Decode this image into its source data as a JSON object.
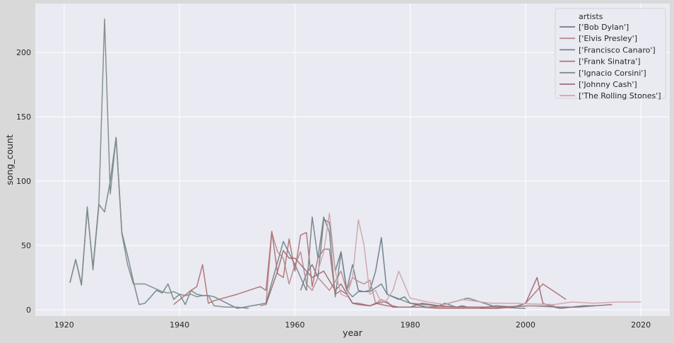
{
  "chart_data": {
    "type": "line",
    "title": "",
    "xlabel": "year",
    "ylabel": "song_count",
    "xlim": [
      1915,
      2025
    ],
    "ylim": [
      -5,
      238
    ],
    "xticks": [
      1920,
      1940,
      1960,
      1980,
      2000,
      2020
    ],
    "yticks": [
      0,
      50,
      100,
      150,
      200
    ],
    "grid": true,
    "legend": {
      "title": "artists",
      "placement": "top-right"
    },
    "series": [
      {
        "name": "['Bob Dylan']",
        "color": "#6b7d89",
        "x": [
          1961,
          1962,
          1963,
          1964,
          1965,
          1966,
          1967,
          1968,
          1969,
          1970,
          1971,
          1972,
          1973,
          1974,
          1975,
          1976,
          1977,
          1978,
          1979,
          1980,
          1981,
          1983,
          1985,
          1986,
          1988,
          1989,
          1990,
          1992,
          1993,
          1995,
          1997,
          2001,
          2006,
          2009,
          2012
        ],
        "y": [
          15,
          28,
          35,
          25,
          70,
          68,
          30,
          45,
          15,
          35,
          15,
          14,
          15,
          30,
          56,
          12,
          10,
          8,
          10,
          5,
          4,
          2,
          3,
          5,
          2,
          3,
          2,
          2,
          1,
          1,
          2,
          3,
          2,
          2,
          3
        ]
      },
      {
        "name": "['Elvis Presley']",
        "color": "#b98a90",
        "x": [
          1954,
          1955,
          1956,
          1957,
          1958,
          1959,
          1960,
          1961,
          1962,
          1963,
          1964,
          1965,
          1966,
          1967,
          1968,
          1969,
          1970,
          1971,
          1972,
          1973,
          1974,
          1975,
          1976,
          1977,
          1978,
          1980,
          1985,
          1990,
          1995,
          2000,
          2005
        ],
        "y": [
          3,
          4,
          60,
          45,
          40,
          20,
          35,
          45,
          20,
          15,
          25,
          20,
          15,
          22,
          30,
          15,
          25,
          22,
          20,
          23,
          5,
          8,
          5,
          3,
          2,
          2,
          2,
          2,
          2,
          3,
          3
        ]
      },
      {
        "name": "['Francisco Canaro']",
        "color": "#738588",
        "x": [
          1921,
          1922,
          1923,
          1924,
          1925,
          1926,
          1927,
          1928,
          1929,
          1930,
          1931,
          1932,
          1933,
          1934,
          1935,
          1936,
          1937,
          1938,
          1939,
          1940,
          1941,
          1942,
          1943,
          1944,
          1945,
          1946,
          1950,
          1955,
          1958,
          1960,
          1962,
          1963,
          1964,
          1965,
          1966,
          1967,
          1968,
          1969,
          1970,
          1971,
          1972,
          1973,
          1975,
          1976,
          1980,
          1985,
          1990,
          1995,
          2000
        ],
        "y": [
          21,
          39,
          20,
          78,
          33,
          82,
          76,
          100,
          134,
          60,
          42,
          22,
          4,
          5,
          10,
          15,
          13,
          20,
          8,
          12,
          4,
          15,
          12,
          11,
          11,
          10,
          1,
          5,
          53,
          35,
          15,
          72,
          40,
          72,
          60,
          10,
          45,
          15,
          10,
          14,
          14,
          14,
          20,
          12,
          5,
          3,
          9,
          2,
          1
        ]
      },
      {
        "name": "['Frank Sinatra']",
        "color": "#b07272",
        "x": [
          1939,
          1942,
          1943,
          1944,
          1945,
          1946,
          1950,
          1954,
          1955,
          1956,
          1957,
          1958,
          1959,
          1960,
          1961,
          1962,
          1963,
          1964,
          1965,
          1966,
          1967,
          1968,
          1969,
          1970,
          1971,
          1972,
          1973,
          1974,
          1975,
          1976,
          1978,
          1980,
          1982,
          1985,
          1990,
          1995,
          1998,
          2000,
          2003,
          2007
        ],
        "y": [
          4,
          15,
          18,
          35,
          5,
          7,
          12,
          18,
          15,
          61,
          28,
          25,
          55,
          30,
          58,
          60,
          18,
          40,
          47,
          47,
          12,
          15,
          12,
          5,
          5,
          4,
          3,
          5,
          4,
          3,
          2,
          2,
          2,
          1,
          1,
          1,
          2,
          5,
          20,
          8
        ]
      },
      {
        "name": "['Ignacio Corsini']",
        "color": "#7f8c8b",
        "x": [
          1921,
          1922,
          1923,
          1924,
          1925,
          1926,
          1927,
          1928,
          1929,
          1930,
          1931,
          1932,
          1933,
          1934,
          1935,
          1936,
          1937,
          1938,
          1939,
          1940,
          1941,
          1942,
          1943,
          1944,
          1945,
          1946,
          1948,
          1950,
          1952
        ],
        "y": [
          21,
          39,
          19,
          80,
          31,
          80,
          226,
          90,
          134,
          59,
          35,
          20,
          20,
          20,
          18,
          16,
          14,
          13,
          14,
          12,
          11,
          12,
          10,
          11,
          11,
          3,
          2,
          2,
          1
        ]
      },
      {
        "name": "['Johnny Cash']",
        "color": "#9c6e72",
        "x": [
          1955,
          1957,
          1958,
          1959,
          1960,
          1962,
          1963,
          1965,
          1967,
          1968,
          1970,
          1971,
          1973,
          1975,
          1976,
          1977,
          1980,
          1982,
          1985,
          1988,
          1990,
          1993,
          1995,
          1998,
          2000,
          2002,
          2003,
          2005,
          2006,
          2008,
          2010,
          2012,
          2015
        ],
        "y": [
          4,
          30,
          46,
          40,
          40,
          30,
          25,
          30,
          15,
          20,
          5,
          4,
          3,
          6,
          6,
          2,
          2,
          5,
          3,
          2,
          2,
          2,
          3,
          2,
          5,
          25,
          5,
          2,
          1,
          2,
          3,
          3,
          4
        ]
      },
      {
        "name": "['The Rolling Stones']",
        "color": "#cfa6ac",
        "x": [
          1964,
          1965,
          1966,
          1967,
          1968,
          1969,
          1970,
          1971,
          1972,
          1973,
          1974,
          1975,
          1976,
          1977,
          1978,
          1980,
          1981,
          1983,
          1986,
          1989,
          1994,
          1997,
          2005,
          2008,
          2012,
          2016,
          2020
        ],
        "y": [
          30,
          45,
          75,
          30,
          12,
          10,
          25,
          70,
          50,
          12,
          15,
          5,
          8,
          15,
          30,
          9,
          8,
          6,
          4,
          8,
          5,
          5,
          4,
          6,
          5,
          6,
          6
        ]
      }
    ]
  }
}
